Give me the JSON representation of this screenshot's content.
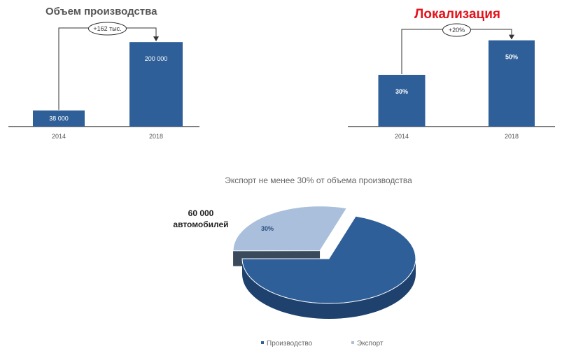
{
  "chart_data": [
    {
      "type": "bar",
      "title": "Объем производства",
      "categories": [
        "2014",
        "2018"
      ],
      "values": [
        38000,
        200000
      ],
      "value_labels": [
        "38 000",
        "200 000"
      ],
      "ylim": [
        0,
        240000
      ],
      "annotation": "+162 тыс.",
      "colors": {
        "bar": "#2f5f98",
        "axis": "#555555",
        "title": "#555555"
      }
    },
    {
      "type": "bar",
      "title": "Локализация",
      "categories": [
        "2014",
        "2018"
      ],
      "values": [
        30,
        50
      ],
      "value_labels": [
        "30%",
        "50%"
      ],
      "ylim": [
        0,
        60
      ],
      "annotation": "+20%",
      "colors": {
        "bar": "#2f5f98",
        "axis": "#555555",
        "title": "#e3131b"
      }
    },
    {
      "type": "pie",
      "title": "Экспорт не менее 30% от объема производства",
      "labels": [
        "Производство",
        "Экспорт"
      ],
      "values": [
        70,
        30
      ],
      "slice_labels": [
        "",
        "30%"
      ],
      "callout": [
        "60 000",
        "автомобилей"
      ],
      "legend": "bottom",
      "colors": {
        "production": "#2f5f98",
        "export": "#a9bfdc"
      }
    }
  ]
}
